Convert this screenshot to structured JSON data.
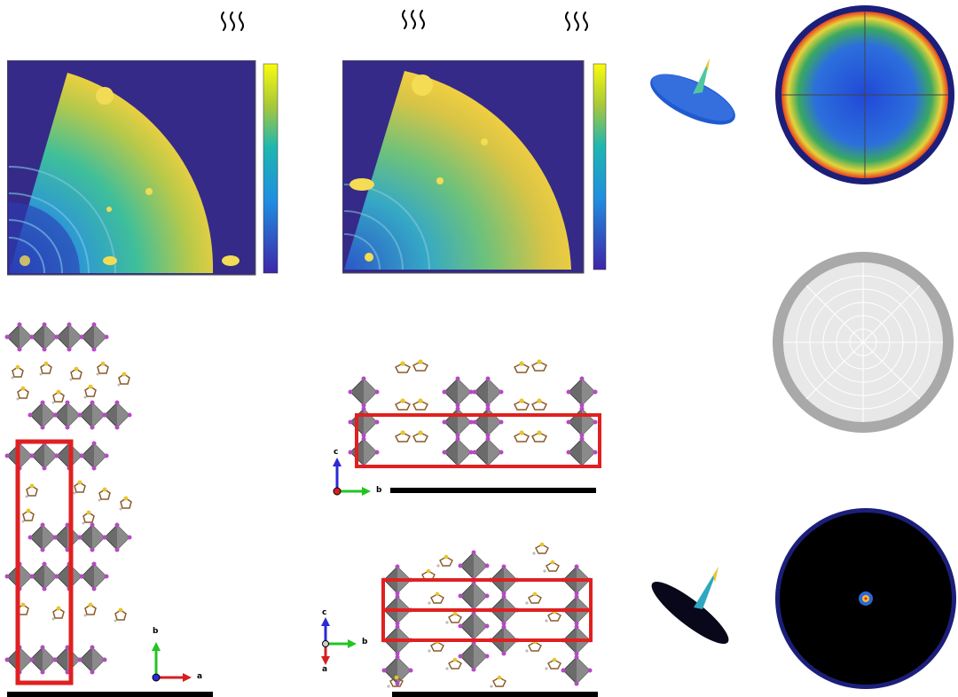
{
  "heat_symbols": {
    "symbol": "wavy-heat-lines-icon",
    "count": 3
  },
  "colors": {
    "heatmap_background": "#352a87",
    "colorbar_top": "#f9fb0e",
    "colorbar_mid": "#1fb6b0",
    "colorbar_bottom": "#3e26a8",
    "octahedron": "#6b6b6b",
    "iodide_atom": "#b44bc2",
    "sulfur_atom": "#e6c52b",
    "unit_cell": "#e02020",
    "axis_a": "#d62020",
    "axis_b": "#22c422",
    "axis_c": "#2a2ad6",
    "scale_bar": "#000000",
    "pole_figure_ring_outer": "#1b1f7a",
    "pole_figure_grey": "#a9a9a9",
    "pole_figure_black": "#000000"
  },
  "panels": {
    "giwaxs_left": {
      "colorbar": true,
      "shape": "quarter-circle-pattern"
    },
    "giwaxs_right": {
      "colorbar": true,
      "shape": "quarter-circle-pattern"
    },
    "crystal_left": {
      "axes": [
        "b",
        "a"
      ]
    },
    "crystal_mid_top": {
      "axes": [
        "c",
        "b"
      ]
    },
    "crystal_mid_bottom": {
      "axes": [
        "c",
        "b",
        "a"
      ]
    },
    "pole_figures": [
      "random-texture",
      "isotropic-grey",
      "single-spot"
    ]
  },
  "axes_labels": {
    "left_b": "b",
    "left_a": "a",
    "mid_top_c": "c",
    "mid_top_b": "b",
    "mid_bottom_c": "c",
    "mid_bottom_b": "b",
    "mid_bottom_a": "a"
  }
}
